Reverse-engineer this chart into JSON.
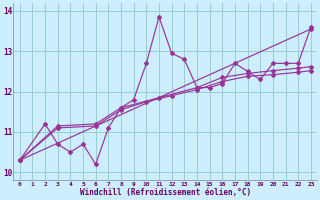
{
  "xlabel": "Windchill (Refroidissement éolien,°C)",
  "bg_color": "#cceeff",
  "grid_color": "#99cccc",
  "line_color": "#993399",
  "label_color": "#660066",
  "xlim": [
    -0.5,
    23.5
  ],
  "ylim": [
    9.8,
    14.2
  ],
  "yticks": [
    10,
    11,
    12,
    13,
    14
  ],
  "xticks": [
    0,
    1,
    2,
    3,
    4,
    5,
    6,
    7,
    8,
    9,
    10,
    11,
    12,
    13,
    14,
    15,
    16,
    17,
    18,
    19,
    20,
    21,
    22,
    23
  ],
  "lines": [
    {
      "x": [
        0,
        2,
        3,
        4,
        5,
        6,
        7,
        8,
        9,
        10,
        11,
        12,
        13,
        14,
        15,
        16,
        17,
        18,
        19,
        20,
        21,
        22,
        23
      ],
      "y": [
        10.3,
        11.2,
        10.7,
        10.5,
        10.7,
        10.2,
        11.1,
        11.6,
        11.8,
        12.7,
        13.85,
        12.95,
        12.8,
        12.1,
        12.1,
        12.2,
        12.7,
        12.5,
        12.3,
        12.7,
        12.7,
        12.7,
        13.6
      ]
    },
    {
      "x": [
        0,
        3,
        6,
        8,
        10,
        12,
        14,
        16,
        18,
        20,
        22,
        23
      ],
      "y": [
        10.3,
        11.1,
        11.15,
        11.55,
        11.75,
        11.9,
        12.05,
        12.25,
        12.38,
        12.42,
        12.48,
        12.52
      ]
    },
    {
      "x": [
        0,
        3,
        6,
        8,
        11,
        14,
        16,
        18,
        20,
        22,
        23
      ],
      "y": [
        10.3,
        11.15,
        11.2,
        11.6,
        11.85,
        12.1,
        12.35,
        12.45,
        12.52,
        12.58,
        12.62
      ]
    },
    {
      "x": [
        0,
        23
      ],
      "y": [
        10.3,
        13.55
      ]
    }
  ]
}
